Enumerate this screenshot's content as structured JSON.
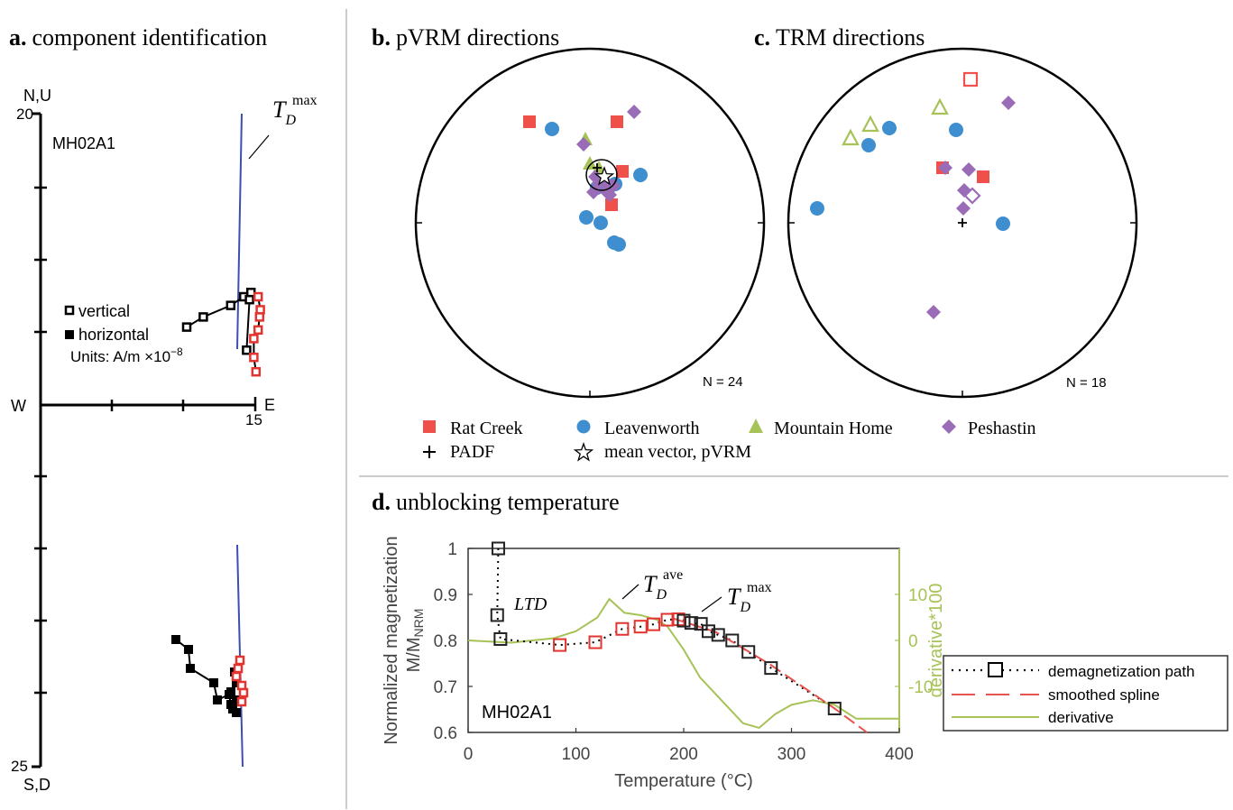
{
  "panel_a": {
    "letter": "a.",
    "title": "component identification",
    "top_axis_label": "N,U",
    "bottom_axis_label": "S,D",
    "left_axis_label": "W",
    "right_axis_label": "E",
    "tick_top": "20",
    "tick_bottom": "25",
    "tick_right": "15",
    "sample": "MH02A1",
    "td_label": "T",
    "td_sub": "D",
    "td_sup": "max",
    "legend_vertical": "vertical",
    "legend_horizontal": "horizontal",
    "units_label": "Units: A/m ×10",
    "units_exp": "−8"
  },
  "panel_b": {
    "letter": "b.",
    "title": "pVRM directions",
    "n_label": "N = 24"
  },
  "panel_c": {
    "letter": "c.",
    "title": "TRM directions",
    "n_label": "N = 18"
  },
  "legend_bc": {
    "rat_creek": "Rat Creek",
    "leavenworth": "Leavenworth",
    "mountain_home": "Mountain Home",
    "peshastin": "Peshastin",
    "padf": "PADF",
    "mean_vector": "mean vector, pVRM"
  },
  "panel_d": {
    "letter": "d.",
    "title": "unblocking temperature",
    "sample": "MH02A1",
    "ltd": "LTD",
    "ave_sup": "ave",
    "max_sup": "max",
    "T": "T",
    "D": "D",
    "ylabel1": "Normalized magnetization",
    "ylabel2": "M/M",
    "ylabel2_sub": "NRM",
    "xlabel": "Temperature (°C)",
    "ylabel_right": "derivative*100",
    "legend_path": "demagnetization path",
    "legend_spline": "smoothed spline",
    "legend_derivative": "derivative"
  },
  "colors": {
    "rat_creek": "#f0504a",
    "leavenworth": "#3f8fd0",
    "mountain_home": "#a7c256",
    "peshastin": "#9a6cb8",
    "fit_line": "#3a4fb0",
    "red_open": "#e3342f",
    "spline_red": "#e8534f",
    "derivative": "#a7c256"
  },
  "chart_data": [
    {
      "type": "scatter",
      "name": "zijderveld",
      "title": "component identification",
      "xlabel": "E",
      "ylabel": "N,U",
      "horizontal": [
        [
          -9.5,
          -5.5
        ],
        [
          -7.2,
          -4.5
        ],
        [
          -3,
          -3.4
        ],
        [
          -1.5,
          -2.6
        ],
        [
          -0.8,
          -3.2
        ],
        [
          -0.4,
          -3.6
        ],
        [
          -0.2,
          -3.3
        ],
        [
          -1,
          -2.8
        ],
        [
          -2,
          -1.6
        ],
        [
          -3.6,
          -0.6
        ],
        [
          -5.5,
          0.8
        ],
        [
          -6.5,
          1.6
        ],
        [
          -8.7,
          3.2
        ]
      ],
      "vertical_black": [
        [
          -9.5,
          5.4
        ],
        [
          -7.2,
          6.1
        ],
        [
          -3.4,
          6.9
        ],
        [
          -1.6,
          7.5
        ],
        [
          -0.6,
          7.8
        ],
        [
          -0.8,
          7.3
        ],
        [
          -1.2,
          3.8
        ]
      ],
      "vertical_red": [
        [
          0.4,
          7.5
        ],
        [
          0.7,
          6.6
        ],
        [
          0.6,
          6.1
        ],
        [
          0.4,
          5.2
        ],
        [
          -0.2,
          4.6
        ],
        [
          -0.2,
          3.3
        ],
        [
          0.1,
          2.3
        ]
      ],
      "horizontal_red": [
        [
          0.4,
          -2.4
        ],
        [
          -0.1,
          -2.7
        ],
        [
          -0.4,
          -3
        ],
        [
          0,
          -3.4
        ],
        [
          0.4,
          -3.7
        ],
        [
          0.3,
          -4.2
        ]
      ]
    },
    {
      "type": "scatter",
      "name": "pVRM equal-area",
      "n": 24
    },
    {
      "type": "scatter",
      "name": "TRM equal-area",
      "n": 18
    },
    {
      "type": "line",
      "name": "unblocking temperature",
      "xlabel": "Temperature (°C)",
      "ylabel": "Normalized magnetization M/MNRM",
      "xlim": [
        0,
        400
      ],
      "ylim": [
        0.6,
        1.0
      ],
      "y2lim": [
        -20,
        20
      ],
      "x_ticks": [
        0,
        100,
        200,
        300,
        400
      ],
      "y_ticks": [
        1,
        0.9,
        0.8,
        0.7,
        0.6
      ],
      "y2_ticks": [
        10,
        0,
        -10
      ],
      "demag_black_x": [
        28,
        27,
        30,
        200,
        207,
        216,
        223,
        232,
        245,
        260,
        281,
        340
      ],
      "demag_black_y": [
        1.0,
        0.855,
        0.803,
        0.843,
        0.838,
        0.836,
        0.82,
        0.812,
        0.8,
        0.775,
        0.74,
        0.652
      ],
      "demag_red_x": [
        85,
        118,
        143,
        160,
        172,
        185,
        195
      ],
      "demag_red_y": [
        0.79,
        0.796,
        0.825,
        0.83,
        0.835,
        0.845,
        0.846
      ],
      "spline_x": [
        190,
        230,
        280,
        340,
        370
      ],
      "spline_y": [
        0.848,
        0.818,
        0.748,
        0.652,
        0.6
      ],
      "derivative_x": [
        0,
        40,
        80,
        100,
        120,
        131,
        145,
        160,
        175,
        185,
        200,
        215,
        235,
        255,
        270,
        285,
        300,
        320,
        340,
        360,
        380,
        400
      ],
      "derivative_y": [
        0,
        -0.5,
        0.5,
        2,
        5,
        9,
        6,
        5.5,
        4.5,
        3,
        -2,
        -8,
        -13,
        -18,
        -19,
        -16,
        -14,
        -13,
        -14,
        -17,
        -17,
        -17
      ]
    }
  ]
}
